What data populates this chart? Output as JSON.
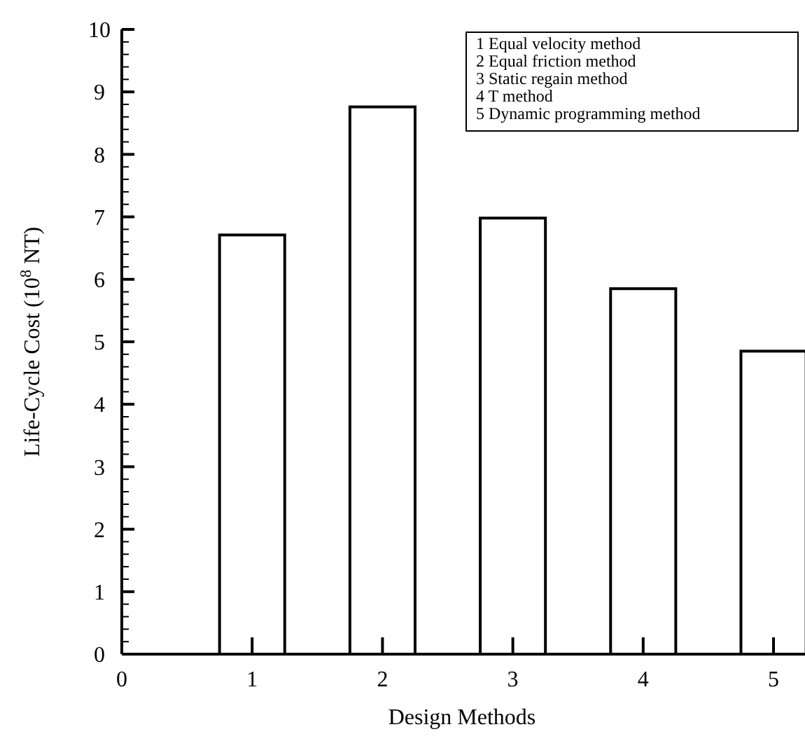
{
  "chart_data": {
    "type": "bar",
    "xlabel": "Design Methods",
    "ylabel": "Life-Cycle Cost (10$^{8}$ NT)",
    "x": [
      1,
      2,
      3,
      4,
      5
    ],
    "values": [
      6.71,
      8.76,
      6.98,
      5.85,
      4.85
    ],
    "color": "#ffffff",
    "xlim": [
      0,
      5.22
    ],
    "xticks": [
      0,
      1,
      2,
      3,
      4,
      5
    ],
    "ylim": [
      0,
      10
    ],
    "yticks": [
      0,
      {
        "value": 0.2,
        "label": null
      },
      {
        "value": 0.4,
        "label": null
      },
      {
        "value": 0.6,
        "label": null
      },
      {
        "value": 0.8,
        "label": null
      },
      1,
      {
        "value": 1.2,
        "label": null
      },
      {
        "value": 1.4,
        "label": null
      },
      {
        "value": 1.6,
        "label": null
      },
      {
        "value": 1.8,
        "label": null
      },
      2,
      {
        "value": 2.2,
        "label": null
      },
      {
        "value": 2.4,
        "label": null
      },
      {
        "value": 2.6,
        "label": null
      },
      {
        "value": 2.8,
        "label": null
      },
      3,
      {
        "value": 3.2,
        "label": null
      },
      {
        "value": 3.4,
        "label": null
      },
      {
        "value": 3.6,
        "label": null
      },
      {
        "value": 3.8,
        "label": null
      },
      4,
      {
        "value": 4.2,
        "label": null
      },
      {
        "value": 4.4,
        "label": null
      },
      {
        "value": 4.6,
        "label": null
      },
      {
        "value": 4.8,
        "label": null
      },
      5,
      {
        "value": 5.2,
        "label": null
      },
      {
        "value": 5.4,
        "label": null
      },
      {
        "value": 5.6,
        "label": null
      },
      {
        "value": 5.8,
        "label": null
      },
      6,
      {
        "value": 6.2,
        "label": null
      },
      {
        "value": 6.4,
        "label": null
      },
      {
        "value": 6.6,
        "label": null
      },
      {
        "value": 6.8,
        "label": null
      },
      7,
      {
        "value": 7.2,
        "label": null
      },
      {
        "value": 7.4,
        "label": null
      },
      {
        "value": 7.6,
        "label": null
      },
      {
        "value": 7.8,
        "label": null
      },
      8,
      {
        "value": 8.2,
        "label": null
      },
      {
        "value": 8.4,
        "label": null
      },
      {
        "value": 8.6,
        "label": null
      },
      {
        "value": 8.8,
        "label": null
      },
      9,
      {
        "value": 9.2,
        "label": null
      },
      {
        "value": 9.4,
        "label": null
      },
      {
        "value": 9.6,
        "label": null
      },
      {
        "value": 9.8,
        "label": null
      },
      10
    ],
    "grid": false,
    "annotations": [
      "1 Equal velocity method",
      "2 Equal friction method",
      "3 Static regain method",
      "4 T method",
      "5 Dynamic programming method"
    ]
  }
}
